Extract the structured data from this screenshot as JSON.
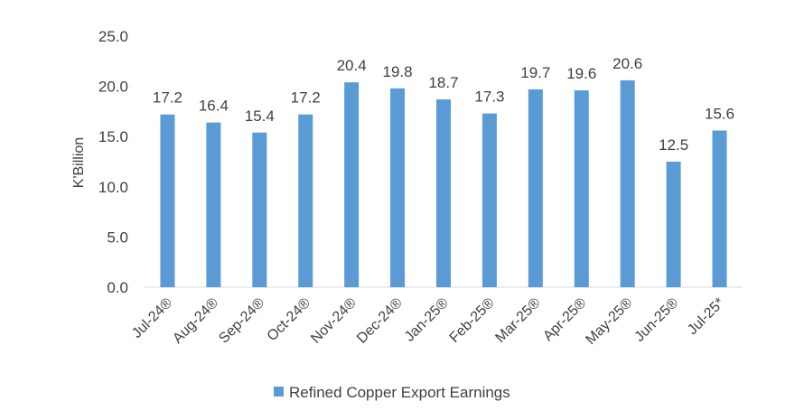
{
  "chart_data": {
    "type": "bar",
    "title": "",
    "xlabel": "",
    "ylabel": "K'Billion",
    "ylim": [
      0,
      25
    ],
    "y_ticks": [
      "0.0",
      "5.0",
      "10.0",
      "15.0",
      "20.0",
      "25.0"
    ],
    "grid": false,
    "legend_position": "bottom",
    "categories": [
      "Jul-24®",
      "Aug-24®",
      "Sep-24®",
      "Oct-24®",
      "Nov-24®",
      "Dec-24®",
      "Jan-25®",
      "Feb-25®",
      "Mar-25®",
      "Apr-25®",
      "May-25®",
      "Jun-25®",
      "Jul-25*"
    ],
    "series": [
      {
        "name": "Refined Copper Export Earnings",
        "color": "#5B9BD5",
        "values": [
          17.2,
          16.4,
          15.4,
          17.2,
          20.4,
          19.8,
          18.7,
          17.3,
          19.7,
          19.6,
          20.6,
          12.5,
          15.6
        ],
        "labels": [
          "17.2",
          "16.4",
          "15.4",
          "17.2",
          "20.4",
          "19.8",
          "18.7",
          "17.3",
          "19.7",
          "19.6",
          "20.6",
          "12.5",
          "15.6"
        ]
      }
    ]
  }
}
